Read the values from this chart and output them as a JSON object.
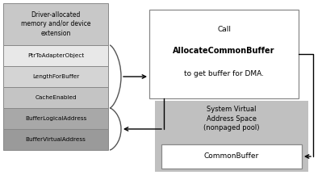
{
  "bg_color": "#ffffff",
  "header_color": "#c8c8c8",
  "header_text": "Driver-allocated\nmemory and/or device\nextension",
  "row_colors": [
    "#e8e8e8",
    "#d4d4d4",
    "#c4c4c4",
    "#a8a8a8",
    "#9a9a9a"
  ],
  "row_labels": [
    "PtrToAdapterObject",
    "LengthForBuffer",
    "CacheEnabled",
    "BufferLogicalAddress",
    "BufferVirtualAddress"
  ],
  "call_text_line1": "Call",
  "call_text_line2": "AllocateCommonBuffer",
  "call_text_line3": "to get buffer for DMA.",
  "sys_label": "System Virtual\nAddress Space\n(nonpaged pool)",
  "common_label": "CommonBuffer",
  "edge_color": "#888888",
  "arrow_color": "#000000",
  "brace_color": "#555555"
}
